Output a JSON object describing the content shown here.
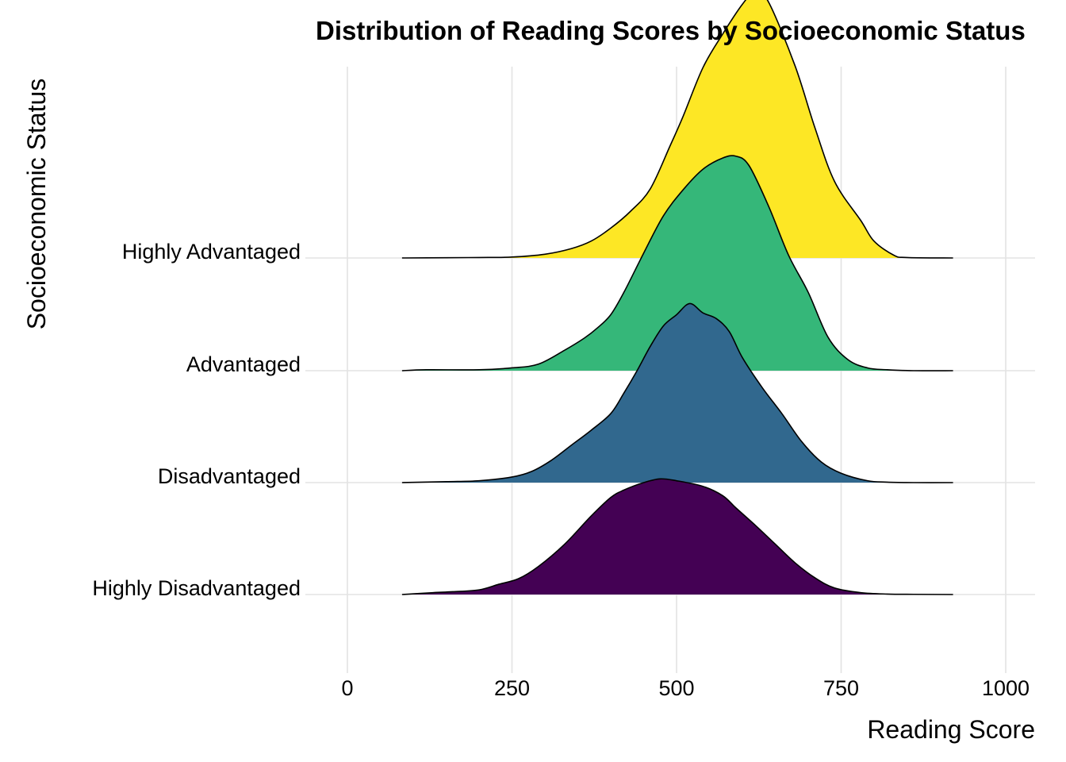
{
  "chart_data": {
    "type": "ridgeline",
    "title": "Distribution of Reading Scores by Socioeconomic Status",
    "xlabel": "Reading Score",
    "ylabel": "Socioeconomic Status",
    "xlim": [
      0,
      1000
    ],
    "x_ticks": [
      "0",
      "250",
      "500",
      "750",
      "1000"
    ],
    "x_tick_values": [
      0,
      250,
      500,
      750,
      1000
    ],
    "grid": true,
    "legend": "none",
    "series": [
      {
        "name": "Highly Disadvantaged",
        "color": "#440154",
        "x": [
          83,
          130,
          160,
          200,
          230,
          260,
          290,
          330,
          370,
          400,
          420,
          450,
          475,
          500,
          540,
          570,
          590,
          620,
          650,
          680,
          710,
          740,
          780,
          820,
          860,
          920
        ],
        "density": [
          0.0,
          0.02,
          0.03,
          0.05,
          0.11,
          0.17,
          0.3,
          0.54,
          0.84,
          1.04,
          1.12,
          1.2,
          1.24,
          1.22,
          1.16,
          1.06,
          0.93,
          0.74,
          0.54,
          0.34,
          0.18,
          0.07,
          0.02,
          0.005,
          0.002,
          0.0
        ]
      },
      {
        "name": "Disadvantaged",
        "color": "#31688e",
        "x": [
          83,
          150,
          200,
          250,
          280,
          310,
          340,
          370,
          400,
          420,
          440,
          460,
          480,
          500,
          520,
          540,
          560,
          580,
          600,
          630,
          660,
          690,
          720,
          750,
          790,
          820,
          860,
          920
        ],
        "density": [
          0.0,
          0.01,
          0.02,
          0.06,
          0.12,
          0.24,
          0.4,
          0.56,
          0.74,
          0.96,
          1.2,
          1.46,
          1.68,
          1.8,
          1.92,
          1.82,
          1.76,
          1.62,
          1.34,
          1.02,
          0.74,
          0.44,
          0.22,
          0.1,
          0.02,
          0.005,
          0.0,
          0.0
        ]
      },
      {
        "name": "Advantaged",
        "color": "#35b779",
        "x": [
          83,
          120,
          200,
          250,
          290,
          330,
          360,
          380,
          400,
          420,
          450,
          480,
          510,
          540,
          570,
          590,
          610,
          640,
          670,
          700,
          730,
          760,
          790,
          820,
          860,
          920
        ],
        "density": [
          0.0,
          0.01,
          0.01,
          0.03,
          0.07,
          0.22,
          0.35,
          0.46,
          0.6,
          0.84,
          1.26,
          1.66,
          1.94,
          2.16,
          2.28,
          2.3,
          2.2,
          1.76,
          1.24,
          0.84,
          0.36,
          0.12,
          0.03,
          0.01,
          0.0,
          0.0
        ]
      },
      {
        "name": "Highly Advantaged",
        "color": "#fde725",
        "x": [
          83,
          150,
          200,
          250,
          300,
          340,
          370,
          400,
          430,
          460,
          490,
          510,
          540,
          570,
          600,
          620,
          640,
          680,
          710,
          740,
          780,
          800,
          830,
          850,
          920
        ],
        "density": [
          0.0,
          0.003,
          0.005,
          0.01,
          0.04,
          0.1,
          0.18,
          0.32,
          0.5,
          0.74,
          1.2,
          1.52,
          2.04,
          2.4,
          2.72,
          2.86,
          2.74,
          2.06,
          1.4,
          0.82,
          0.4,
          0.18,
          0.03,
          0.005,
          0.0
        ]
      }
    ]
  }
}
